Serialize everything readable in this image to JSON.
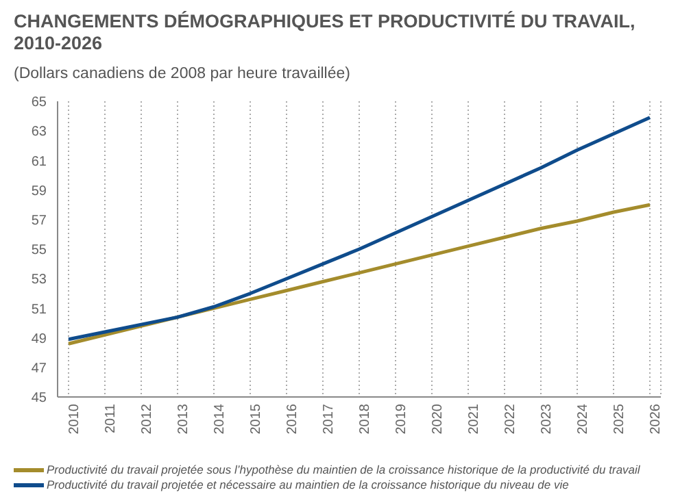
{
  "chart_data": {
    "type": "line",
    "title": "CHANGEMENTS DÉMOGRAPHIQUES ET PRODUCTIVITÉ DU TRAVAIL, 2010-2026",
    "subtitle": "(Dollars canadiens de 2008 par heure travaillée)",
    "categories": [
      "2010",
      "2011",
      "2012",
      "2013",
      "2014",
      "2015",
      "2016",
      "2017",
      "2018",
      "2019",
      "2020",
      "2021",
      "2022",
      "2023",
      "2024",
      "2025",
      "2026"
    ],
    "series": [
      {
        "name": "Productivité du travail projetée sous l’hypothèse du maintien de la croissance historique de la productivité du travail",
        "color": "#a48c2c",
        "values": [
          48.6,
          49.2,
          49.8,
          50.4,
          51.0,
          51.6,
          52.2,
          52.8,
          53.4,
          54.0,
          54.6,
          55.2,
          55.8,
          56.4,
          56.9,
          57.5,
          58.0
        ]
      },
      {
        "name": "Productivité du travail projetée et nécessaire au maintien de la croissance historique du niveau de vie",
        "color": "#0f4c8c",
        "values": [
          48.9,
          49.4,
          49.9,
          50.4,
          51.1,
          52.0,
          53.0,
          54.0,
          55.0,
          56.1,
          57.2,
          58.3,
          59.4,
          60.5,
          61.7,
          62.8,
          63.9
        ]
      }
    ],
    "ylim": [
      45,
      65
    ],
    "yticks": [
      45,
      47,
      49,
      51,
      53,
      55,
      57,
      59,
      61,
      63,
      65
    ],
    "grid": "x",
    "legend": "bottom",
    "marker": "none",
    "line_style": "solid"
  }
}
